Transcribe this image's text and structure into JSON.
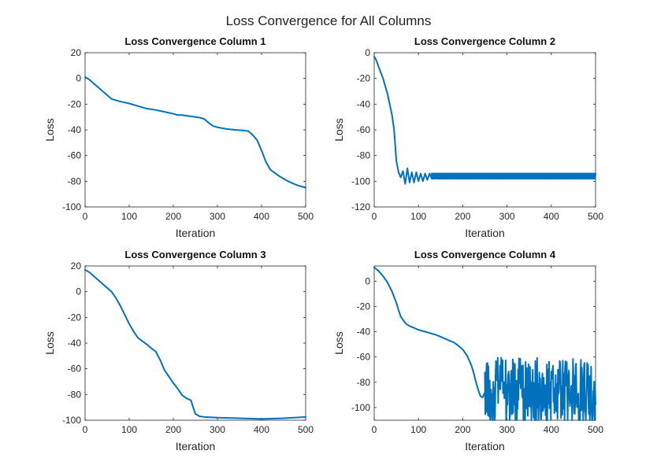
{
  "figure": {
    "suptitle": "Loss Convergence for All Columns"
  },
  "chart_data": [
    {
      "type": "line",
      "title": "Loss Convergence Column 1",
      "xlabel": "Iteration",
      "ylabel": "Loss",
      "xlim": [
        0,
        500
      ],
      "ylim": [
        -100,
        20
      ],
      "xticks": [
        0,
        100,
        200,
        300,
        400,
        500
      ],
      "yticks": [
        -100,
        -80,
        -60,
        -40,
        -20,
        0,
        20
      ],
      "grid": false,
      "color": "#0072BD",
      "series": [
        {
          "x": [
            0,
            10,
            20,
            30,
            40,
            50,
            60,
            80,
            100,
            120,
            140,
            160,
            180,
            200,
            210,
            220,
            240,
            260,
            270,
            280,
            290,
            300,
            320,
            340,
            360,
            370,
            380,
            390,
            400,
            410,
            420,
            440,
            460,
            480,
            500
          ],
          "y": [
            1,
            -1,
            -4,
            -7,
            -10,
            -13,
            -16,
            -18,
            -19.5,
            -21.5,
            -23.5,
            -24.5,
            -26,
            -27.5,
            -28.5,
            -28.5,
            -29.5,
            -30.5,
            -31.5,
            -34.5,
            -37,
            -38,
            -39.3,
            -40,
            -40.5,
            -41,
            -44,
            -48,
            -56,
            -65,
            -71,
            -76,
            -80,
            -83,
            -85
          ]
        }
      ]
    },
    {
      "type": "line",
      "title": "Loss Convergence Column 2",
      "xlabel": "Iteration",
      "ylabel": "Loss",
      "xlim": [
        0,
        500
      ],
      "ylim": [
        -120,
        0
      ],
      "xticks": [
        0,
        100,
        200,
        300,
        400,
        500
      ],
      "yticks": [
        -120,
        -100,
        -80,
        -60,
        -40,
        -20,
        0
      ],
      "grid": false,
      "color": "#0072BD",
      "series": [
        {
          "x": [
            0,
            5,
            10,
            20,
            30,
            40,
            45,
            50,
            55,
            60,
            65,
            70,
            75,
            80,
            85,
            90,
            95,
            100,
            105,
            110,
            115,
            120,
            125,
            130
          ],
          "y": [
            -3,
            -6,
            -11,
            -20,
            -32,
            -48,
            -60,
            -84,
            -93,
            -97,
            -92,
            -102,
            -90,
            -101,
            -93,
            -101,
            -93,
            -100,
            -94,
            -100,
            -94,
            -99,
            -94,
            -98
          ]
        },
        {
          "x": [
            130,
            500
          ],
          "y": [
            -94,
            -98
          ],
          "oscillation": "dense, between -94 and -98"
        }
      ]
    },
    {
      "type": "line",
      "title": "Loss Convergence Column 3",
      "xlabel": "Iteration",
      "ylabel": "Loss",
      "xlim": [
        0,
        500
      ],
      "ylim": [
        -100,
        20
      ],
      "xticks": [
        0,
        100,
        200,
        300,
        400,
        500
      ],
      "yticks": [
        -100,
        -80,
        -60,
        -40,
        -20,
        0,
        20
      ],
      "grid": false,
      "color": "#0072BD",
      "series": [
        {
          "x": [
            0,
            10,
            20,
            30,
            40,
            50,
            60,
            70,
            80,
            90,
            100,
            110,
            120,
            130,
            140,
            150,
            160,
            170,
            175,
            180,
            190,
            200,
            210,
            220,
            230,
            240,
            245,
            250,
            255,
            260,
            270,
            300,
            350,
            400,
            450,
            500
          ],
          "y": [
            17,
            15,
            12,
            9,
            6,
            3,
            0,
            -5,
            -11,
            -18,
            -25,
            -31,
            -36,
            -38.5,
            -41,
            -44,
            -46.5,
            -53,
            -57,
            -61,
            -66,
            -71,
            -75.5,
            -80.5,
            -83,
            -84.5,
            -90,
            -95,
            -96,
            -97,
            -97.5,
            -98,
            -98.5,
            -99,
            -98.5,
            -97.5
          ]
        }
      ]
    },
    {
      "type": "line",
      "title": "Loss Convergence Column 4",
      "xlabel": "Iteration",
      "ylabel": "Loss",
      "xlim": [
        0,
        500
      ],
      "ylim": [
        -110,
        12
      ],
      "xticks": [
        0,
        100,
        200,
        300,
        400,
        500
      ],
      "yticks": [
        -100,
        -80,
        -60,
        -40,
        -20,
        0
      ],
      "grid": false,
      "color": "#0072BD",
      "series": [
        {
          "x": [
            0,
            10,
            20,
            30,
            40,
            50,
            55,
            60,
            65,
            70,
            75,
            80,
            90,
            100,
            110,
            120,
            130,
            140,
            150,
            160,
            170,
            180,
            190,
            200,
            210,
            220,
            225,
            230,
            235,
            240,
            245,
            250
          ],
          "y": [
            11,
            8,
            4,
            -1,
            -8,
            -17,
            -23,
            -28,
            -30.5,
            -33,
            -34.5,
            -35.5,
            -37,
            -38.5,
            -39.5,
            -40.5,
            -41.5,
            -42.5,
            -44,
            -45.5,
            -47,
            -48.5,
            -51,
            -54,
            -59,
            -67,
            -73,
            -80,
            -86,
            -91,
            -92,
            -88
          ]
        },
        {
          "x": [
            250,
            500
          ],
          "y": [
            -110,
            -60
          ],
          "oscillation": "noisy, roughly between -110 and -60"
        }
      ]
    }
  ]
}
